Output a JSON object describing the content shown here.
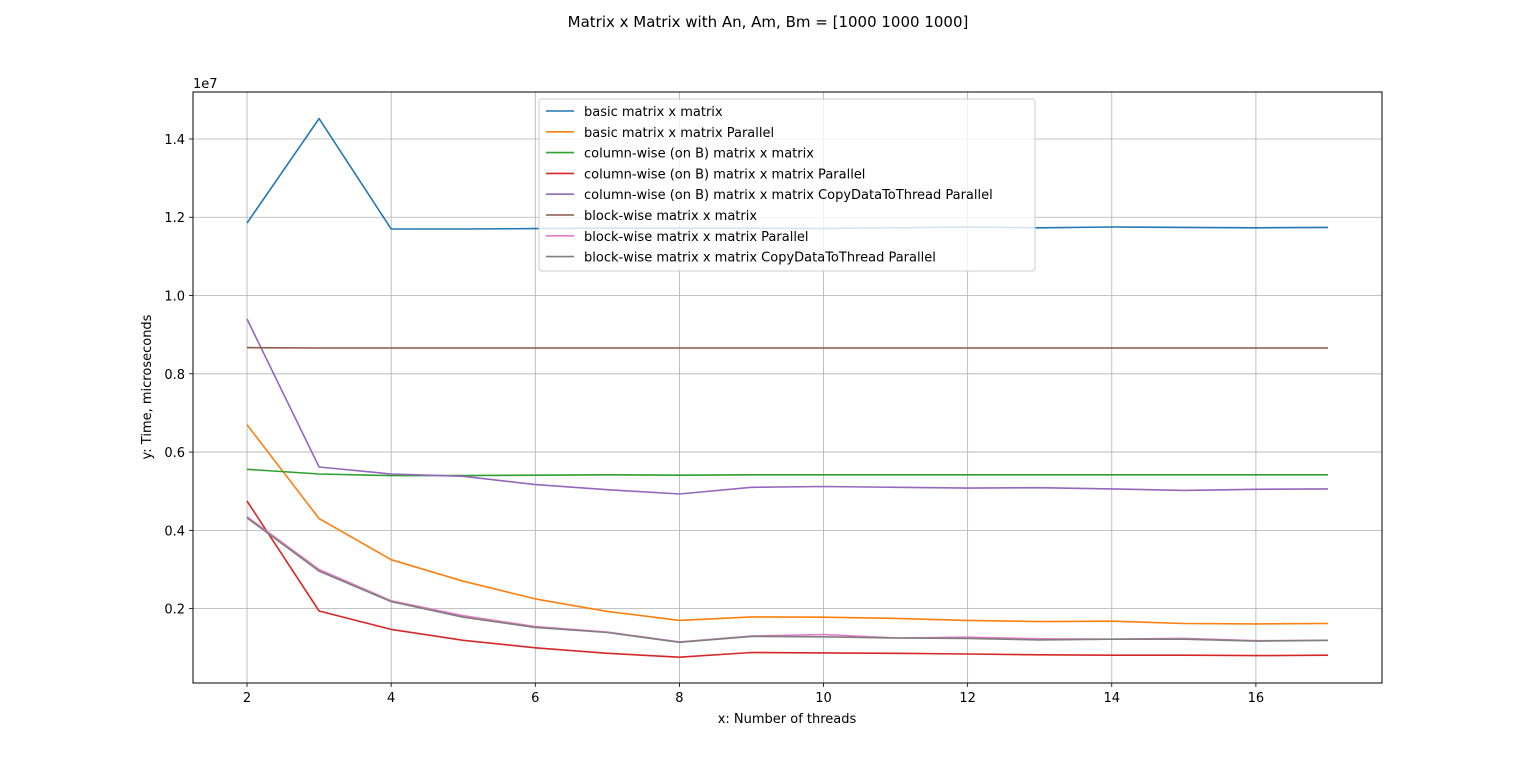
{
  "chart_data": {
    "type": "line",
    "title": "Matrix x Matrix with An, Am, Bm = [1000 1000 1000]",
    "xlabel": "x: Number of threads",
    "ylabel": "y: Time, microseconds",
    "y_scale_label": "1e7",
    "xlim": [
      1.25,
      17.75
    ],
    "ylim": [
      100000,
      15200000
    ],
    "x_ticks": [
      2,
      4,
      6,
      8,
      10,
      12,
      14,
      16
    ],
    "x_tick_labels": [
      "2",
      "4",
      "6",
      "8",
      "10",
      "12",
      "14",
      "16"
    ],
    "y_ticks": [
      2000000,
      4000000,
      6000000,
      8000000,
      10000000,
      12000000,
      14000000
    ],
    "y_tick_labels": [
      "0.2",
      "0.4",
      "0.6",
      "0.8",
      "1.0",
      "1.2",
      "1.4"
    ],
    "grid": true,
    "legend_position": "top-center",
    "x": [
      2,
      3,
      4,
      5,
      6,
      7,
      8,
      9,
      10,
      11,
      12,
      13,
      14,
      15,
      16,
      17
    ],
    "series": [
      {
        "name": " basic matrix x matrix",
        "color": "#1f77b4",
        "values": [
          11850000,
          14520000,
          11700000,
          11700000,
          11710000,
          11720000,
          11720000,
          11720000,
          11710000,
          11730000,
          11750000,
          11730000,
          11750000,
          11740000,
          11730000,
          11740000
        ]
      },
      {
        "name": " basic matrix x matrix Parallel",
        "color": "#ff7f0e",
        "values": [
          6700000,
          4300000,
          3250000,
          2700000,
          2250000,
          1930000,
          1700000,
          1790000,
          1780000,
          1750000,
          1700000,
          1670000,
          1680000,
          1620000,
          1610000,
          1620000
        ]
      },
      {
        "name": " column-wise (on B) matrix x matrix",
        "color": "#2ca02c",
        "values": [
          5560000,
          5440000,
          5400000,
          5400000,
          5410000,
          5420000,
          5410000,
          5420000,
          5420000,
          5420000,
          5420000,
          5420000,
          5420000,
          5420000,
          5420000,
          5420000
        ]
      },
      {
        "name": " column-wise (on B) matrix x matrix Parallel",
        "color": "#d62728",
        "values": [
          4750000,
          1940000,
          1470000,
          1190000,
          1000000,
          860000,
          760000,
          880000,
          870000,
          860000,
          840000,
          820000,
          810000,
          810000,
          800000,
          810000
        ]
      },
      {
        "name": " column-wise (on B) matrix x matrix CopyDataToThread Parallel",
        "color": "#9467bd",
        "values": [
          9400000,
          5620000,
          5440000,
          5380000,
          5170000,
          5040000,
          4930000,
          5100000,
          5120000,
          5100000,
          5080000,
          5090000,
          5060000,
          5020000,
          5050000,
          5060000
        ]
      },
      {
        "name": " block-wise matrix x matrix",
        "color": "#8c564b",
        "values": [
          8670000,
          8660000,
          8660000,
          8660000,
          8660000,
          8660000,
          8660000,
          8660000,
          8660000,
          8660000,
          8660000,
          8660000,
          8660000,
          8660000,
          8660000,
          8660000
        ]
      },
      {
        "name": " block-wise matrix x matrix Parallel",
        "color": "#e377c2",
        "values": [
          4350000,
          3000000,
          2200000,
          1820000,
          1540000,
          1400000,
          1150000,
          1300000,
          1340000,
          1250000,
          1270000,
          1230000,
          1220000,
          1240000,
          1180000,
          1190000
        ]
      },
      {
        "name": " block-wise matrix x matrix CopyDataToThread Parallel",
        "color": "#7f7f7f",
        "values": [
          4320000,
          2960000,
          2180000,
          1780000,
          1520000,
          1390000,
          1140000,
          1290000,
          1280000,
          1250000,
          1240000,
          1200000,
          1220000,
          1220000,
          1170000,
          1190000
        ]
      }
    ]
  }
}
